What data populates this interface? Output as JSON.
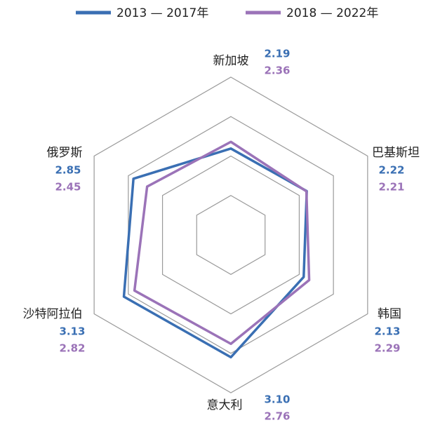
{
  "chart_data": {
    "type": "radar",
    "categories": [
      "新加坡",
      "巴基斯坦",
      "韩国",
      "意大利",
      "沙特阿拉伯",
      "俄罗斯"
    ],
    "series": [
      {
        "name": "2013 — 2017年",
        "color": "#3a6fb3",
        "values": [
          2.19,
          2.22,
          2.13,
          3.1,
          3.13,
          2.85
        ],
        "value_labels": [
          "2.19",
          "2.22",
          "2.13",
          "3.10",
          "3.13",
          "2.85"
        ]
      },
      {
        "name": "2018 — 2022年",
        "color": "#9b73b8",
        "values": [
          2.36,
          2.21,
          2.29,
          2.76,
          2.82,
          2.45
        ],
        "value_labels": [
          "2.36",
          "2.21",
          "2.29",
          "2.76",
          "2.82",
          "2.45"
        ]
      }
    ],
    "rlim": [
      0,
      4
    ],
    "rticks": [
      1,
      2,
      3,
      4
    ],
    "legend": "top"
  }
}
